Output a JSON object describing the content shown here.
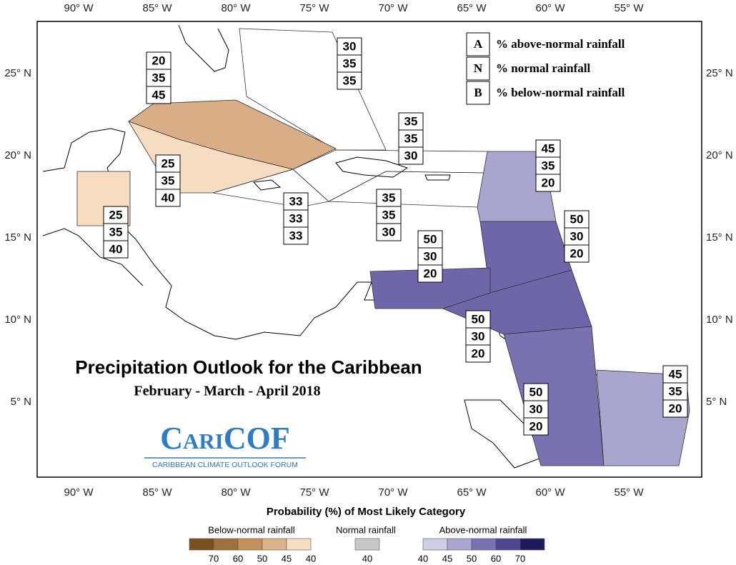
{
  "map": {
    "lon_labels": [
      "90° W",
      "85° W",
      "80° W",
      "75° W",
      "70° W",
      "65° W",
      "60° W",
      "55° W"
    ],
    "lat_labels": [
      "25° N",
      "20° N",
      "15° N",
      "10° N",
      "5° N"
    ],
    "key": [
      {
        "letter": "A",
        "text": "% above-normal rainfall"
      },
      {
        "letter": "N",
        "text": "% normal rainfall"
      },
      {
        "letter": "B",
        "text": "% below-normal rainfall"
      }
    ],
    "regions": [
      [
        30,
        35,
        35
      ],
      [
        20,
        35,
        45
      ],
      [
        25,
        35,
        40
      ],
      [
        25,
        35,
        40
      ],
      [
        33,
        33,
        33
      ],
      [
        35,
        35,
        30
      ],
      [
        35,
        35,
        30
      ],
      [
        45,
        35,
        20
      ],
      [
        50,
        30,
        20
      ],
      [
        50,
        30,
        20
      ],
      [
        50,
        30,
        20
      ],
      [
        50,
        30,
        20
      ],
      [
        45,
        35,
        20
      ]
    ],
    "title": "Precipitation Outlook for the Caribbean",
    "subtitle": "February - March - April 2018",
    "logo": "CariCOF",
    "logo_subtitle": "CARIBBEAN CLIMATE OUTLOOK FORUM"
  },
  "legend": {
    "title": "Probability (%) of Most Likely Category",
    "below": {
      "label": "Below-normal rainfall",
      "ticks": [
        70,
        60,
        50,
        45,
        40
      ]
    },
    "normal": {
      "label": "Normal rainfall",
      "ticks": [
        40
      ]
    },
    "above": {
      "label": "Above-normal rainfall",
      "ticks": [
        40,
        45,
        50,
        60,
        70
      ]
    }
  }
}
